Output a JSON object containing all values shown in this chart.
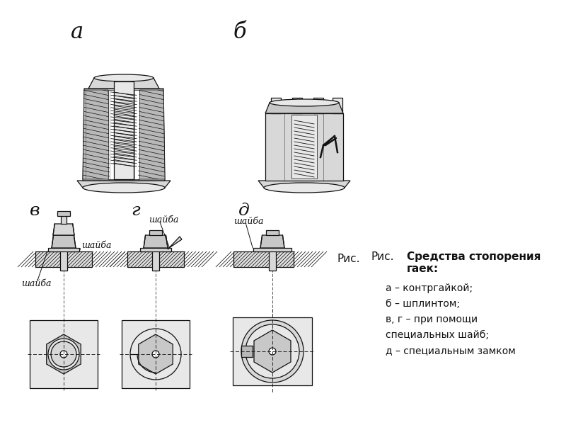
{
  "background_color": "#ffffff",
  "caption_ris": "Рис.",
  "caption_title": "Средства стопорения\nгаек:",
  "caption_lines": [
    "а – контргайкой;",
    "б – шплинтом;",
    "в, г – при помощи",
    "специальных шайб;",
    "д – специальным замком"
  ],
  "label_a": "а",
  "label_b": "б",
  "label_v": "в",
  "label_g": "г",
  "label_d": "д",
  "fig_width": 8.0,
  "fig_height": 6.0,
  "dpi": 100,
  "lw": 0.9
}
